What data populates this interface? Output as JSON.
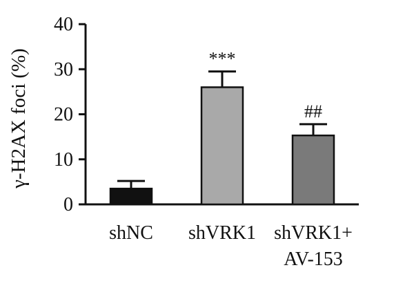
{
  "chart_data": {
    "type": "bar",
    "title": "",
    "xlabel": "",
    "ylabel": "γ-H2AX foci (%)",
    "ylim": [
      0,
      40
    ],
    "yticks": [
      0,
      10,
      20,
      30,
      40
    ],
    "grid": false,
    "legend": "none",
    "categories": [
      [
        "shNC"
      ],
      [
        "shVRK1"
      ],
      [
        "shVRK1+",
        "AV-153"
      ]
    ],
    "values": [
      3.5,
      26,
      15.3
    ],
    "errors": [
      1.7,
      3.5,
      2.5
    ],
    "annotations": [
      "",
      "***",
      "##"
    ],
    "colors": [
      "#111111",
      "#a9a9a9",
      "#7a7a7a"
    ]
  }
}
